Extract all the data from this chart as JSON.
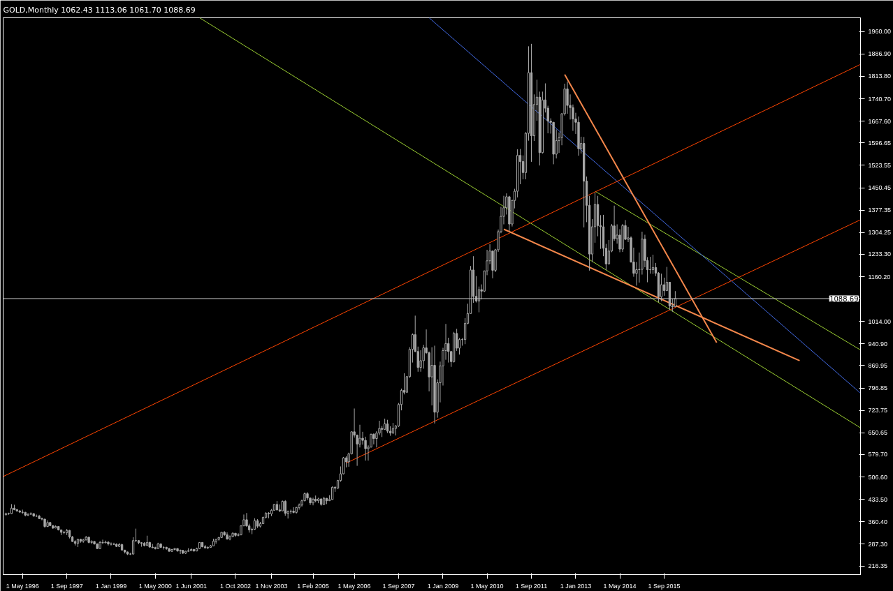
{
  "chart_data": {
    "type": "candlestick",
    "title": "GOLD,Monthly  1062.43 1113.06 1061.70 1088.69",
    "color": "#a8a8a8",
    "x": [
      "1995-11",
      "1995-12",
      "1996-01",
      "1996-02",
      "1996-03",
      "1996-04",
      "1996-05",
      "1996-06",
      "1996-07",
      "1996-08",
      "1996-09",
      "1996-10",
      "1996-11",
      "1996-12",
      "1997-01",
      "1997-02",
      "1997-03",
      "1997-04",
      "1997-05",
      "1997-06",
      "1997-07",
      "1997-08",
      "1997-09",
      "1997-10",
      "1997-11",
      "1997-12",
      "1998-01",
      "1998-02",
      "1998-03",
      "1998-04",
      "1998-05",
      "1998-06",
      "1998-07",
      "1998-08",
      "1998-09",
      "1998-10",
      "1998-11",
      "1998-12",
      "1999-01",
      "1999-02",
      "1999-03",
      "1999-04",
      "1999-05",
      "1999-06",
      "1999-07",
      "1999-08",
      "1999-09",
      "1999-10",
      "1999-11",
      "1999-12",
      "2000-01",
      "2000-02",
      "2000-03",
      "2000-04",
      "2000-05",
      "2000-06",
      "2000-07",
      "2000-08",
      "2000-09",
      "2000-10",
      "2000-11",
      "2000-12",
      "2001-01",
      "2001-02",
      "2001-03",
      "2001-04",
      "2001-05",
      "2001-06",
      "2001-07",
      "2001-08",
      "2001-09",
      "2001-10",
      "2001-11",
      "2001-12",
      "2002-01",
      "2002-02",
      "2002-03",
      "2002-04",
      "2002-05",
      "2002-06",
      "2002-07",
      "2002-08",
      "2002-09",
      "2002-10",
      "2002-11",
      "2002-12",
      "2003-01",
      "2003-02",
      "2003-03",
      "2003-04",
      "2003-05",
      "2003-06",
      "2003-07",
      "2003-08",
      "2003-09",
      "2003-10",
      "2003-11",
      "2003-12",
      "2004-01",
      "2004-02",
      "2004-03",
      "2004-04",
      "2004-05",
      "2004-06",
      "2004-07",
      "2004-08",
      "2004-09",
      "2004-10",
      "2004-11",
      "2004-12",
      "2005-01",
      "2005-02",
      "2005-03",
      "2005-04",
      "2005-05",
      "2005-06",
      "2005-07",
      "2005-08",
      "2005-09",
      "2005-10",
      "2005-11",
      "2005-12",
      "2006-01",
      "2006-02",
      "2006-03",
      "2006-04",
      "2006-05",
      "2006-06",
      "2006-07",
      "2006-08",
      "2006-09",
      "2006-10",
      "2006-11",
      "2006-12",
      "2007-01",
      "2007-02",
      "2007-03",
      "2007-04",
      "2007-05",
      "2007-06",
      "2007-07",
      "2007-08",
      "2007-09",
      "2007-10",
      "2007-11",
      "2007-12",
      "2008-01",
      "2008-02",
      "2008-03",
      "2008-04",
      "2008-05",
      "2008-06",
      "2008-07",
      "2008-08",
      "2008-09",
      "2008-10",
      "2008-11",
      "2008-12",
      "2009-01",
      "2009-02",
      "2009-03",
      "2009-04",
      "2009-05",
      "2009-06",
      "2009-07",
      "2009-08",
      "2009-09",
      "2009-10",
      "2009-11",
      "2009-12",
      "2010-01",
      "2010-02",
      "2010-03",
      "2010-04",
      "2010-05",
      "2010-06",
      "2010-07",
      "2010-08",
      "2010-09",
      "2010-10",
      "2010-11",
      "2010-12",
      "2011-01",
      "2011-02",
      "2011-03",
      "2011-04",
      "2011-05",
      "2011-06",
      "2011-07",
      "2011-08",
      "2011-09",
      "2011-10",
      "2011-11",
      "2011-12",
      "2012-01",
      "2012-02",
      "2012-03",
      "2012-04",
      "2012-05",
      "2012-06",
      "2012-07",
      "2012-08",
      "2012-09",
      "2012-10",
      "2012-11",
      "2012-12",
      "2013-01",
      "2013-02",
      "2013-03",
      "2013-04",
      "2013-05",
      "2013-06",
      "2013-07",
      "2013-08",
      "2013-09",
      "2013-10",
      "2013-11",
      "2013-12",
      "2014-01",
      "2014-02",
      "2014-03",
      "2014-04",
      "2014-05",
      "2014-06",
      "2014-07",
      "2014-08",
      "2014-09",
      "2014-10",
      "2014-11",
      "2014-12",
      "2015-01",
      "2015-02",
      "2015-03",
      "2015-04",
      "2015-05",
      "2015-06",
      "2015-07",
      "2015-08",
      "2015-09",
      "2015-10",
      "2015-11",
      "2015-12",
      "2016-01"
    ],
    "ohlc": [
      [
        383,
        390,
        382,
        387
      ],
      [
        387,
        390,
        383,
        387
      ],
      [
        387,
        418,
        385,
        405
      ],
      [
        405,
        416,
        398,
        400
      ],
      [
        400,
        402,
        393,
        396
      ],
      [
        396,
        398,
        389,
        392
      ],
      [
        392,
        400,
        386,
        391
      ],
      [
        391,
        393,
        378,
        382
      ],
      [
        382,
        388,
        379,
        385
      ],
      [
        385,
        391,
        383,
        387
      ],
      [
        387,
        388,
        377,
        379
      ],
      [
        379,
        384,
        376,
        379
      ],
      [
        379,
        383,
        369,
        371
      ],
      [
        371,
        374,
        365,
        369
      ],
      [
        369,
        370,
        341,
        345
      ],
      [
        345,
        365,
        343,
        358
      ],
      [
        358,
        359,
        346,
        348
      ],
      [
        348,
        349,
        337,
        340
      ],
      [
        340,
        349,
        339,
        345
      ],
      [
        345,
        346,
        332,
        334
      ],
      [
        334,
        335,
        317,
        326
      ],
      [
        326,
        331,
        320,
        325
      ],
      [
        325,
        337,
        317,
        332
      ],
      [
        332,
        334,
        306,
        311
      ],
      [
        311,
        314,
        295,
        296
      ],
      [
        296,
        300,
        283,
        290
      ],
      [
        290,
        305,
        278,
        303
      ],
      [
        303,
        305,
        292,
        297
      ],
      [
        297,
        305,
        292,
        301
      ],
      [
        301,
        314,
        300,
        310
      ],
      [
        310,
        312,
        290,
        293
      ],
      [
        293,
        300,
        288,
        296
      ],
      [
        296,
        298,
        286,
        288
      ],
      [
        288,
        290,
        272,
        273
      ],
      [
        273,
        298,
        272,
        293
      ],
      [
        293,
        302,
        288,
        292
      ],
      [
        292,
        299,
        290,
        294
      ],
      [
        294,
        297,
        283,
        288
      ],
      [
        288,
        293,
        283,
        287
      ],
      [
        287,
        292,
        285,
        287
      ],
      [
        287,
        290,
        278,
        280
      ],
      [
        280,
        291,
        278,
        286
      ],
      [
        286,
        289,
        267,
        268
      ],
      [
        268,
        269,
        257,
        262
      ],
      [
        262,
        263,
        252,
        255
      ],
      [
        255,
        259,
        252,
        255
      ],
      [
        255,
        310,
        254,
        299
      ],
      [
        299,
        338,
        294,
        299
      ],
      [
        299,
        300,
        287,
        292
      ],
      [
        292,
        294,
        279,
        290
      ],
      [
        290,
        294,
        280,
        283
      ],
      [
        283,
        315,
        282,
        293
      ],
      [
        293,
        295,
        276,
        278
      ],
      [
        278,
        288,
        274,
        276
      ],
      [
        276,
        279,
        270,
        273
      ],
      [
        273,
        292,
        272,
        288
      ],
      [
        288,
        290,
        275,
        277
      ],
      [
        277,
        281,
        270,
        277
      ],
      [
        277,
        279,
        269,
        273
      ],
      [
        273,
        275,
        263,
        264
      ],
      [
        264,
        272,
        262,
        270
      ],
      [
        270,
        275,
        267,
        273
      ],
      [
        273,
        274,
        263,
        265
      ],
      [
        265,
        270,
        255,
        267
      ],
      [
        267,
        268,
        255,
        258
      ],
      [
        258,
        266,
        255,
        264
      ],
      [
        264,
        274,
        263,
        266
      ],
      [
        266,
        274,
        265,
        270
      ],
      [
        270,
        272,
        263,
        265
      ],
      [
        265,
        276,
        264,
        273
      ],
      [
        273,
        294,
        271,
        293
      ],
      [
        293,
        294,
        277,
        279
      ],
      [
        279,
        285,
        274,
        275
      ],
      [
        275,
        280,
        271,
        277
      ],
      [
        277,
        285,
        276,
        282
      ],
      [
        282,
        305,
        281,
        297
      ],
      [
        297,
        304,
        289,
        303
      ],
      [
        303,
        311,
        299,
        309
      ],
      [
        309,
        328,
        308,
        326
      ],
      [
        326,
        330,
        314,
        318
      ],
      [
        318,
        326,
        302,
        304
      ],
      [
        304,
        316,
        300,
        312
      ],
      [
        312,
        326,
        310,
        323
      ],
      [
        323,
        323,
        311,
        316
      ],
      [
        316,
        323,
        313,
        318
      ],
      [
        318,
        349,
        316,
        347
      ],
      [
        347,
        384,
        346,
        367
      ],
      [
        367,
        389,
        344,
        347
      ],
      [
        347,
        354,
        325,
        334
      ],
      [
        334,
        341,
        320,
        336
      ],
      [
        336,
        372,
        334,
        364
      ],
      [
        364,
        369,
        340,
        346
      ],
      [
        346,
        360,
        342,
        354
      ],
      [
        354,
        377,
        353,
        375
      ],
      [
        375,
        392,
        371,
        388
      ],
      [
        388,
        392,
        372,
        386
      ],
      [
        386,
        402,
        379,
        398
      ],
      [
        398,
        418,
        397,
        417
      ],
      [
        417,
        428,
        398,
        399
      ],
      [
        399,
        417,
        392,
        396
      ],
      [
        396,
        430,
        396,
        427
      ],
      [
        427,
        431,
        380,
        388
      ],
      [
        388,
        397,
        371,
        394
      ],
      [
        394,
        400,
        386,
        395
      ],
      [
        395,
        408,
        388,
        391
      ],
      [
        391,
        409,
        387,
        407
      ],
      [
        407,
        420,
        400,
        415
      ],
      [
        415,
        433,
        410,
        429
      ],
      [
        429,
        456,
        427,
        452
      ],
      [
        452,
        457,
        431,
        438
      ],
      [
        438,
        439,
        415,
        422
      ],
      [
        422,
        439,
        414,
        434
      ],
      [
        434,
        446,
        424,
        429
      ],
      [
        429,
        439,
        421,
        435
      ],
      [
        435,
        436,
        413,
        417
      ],
      [
        417,
        442,
        415,
        437
      ],
      [
        437,
        438,
        418,
        429
      ],
      [
        429,
        447,
        428,
        433
      ],
      [
        433,
        476,
        432,
        473
      ],
      [
        473,
        476,
        458,
        470
      ],
      [
        470,
        497,
        468,
        495
      ],
      [
        495,
        541,
        491,
        517
      ],
      [
        517,
        572,
        515,
        569
      ],
      [
        569,
        574,
        538,
        556
      ],
      [
        556,
        586,
        540,
        582
      ],
      [
        582,
        655,
        580,
        654
      ],
      [
        654,
        730,
        635,
        643
      ],
      [
        643,
        645,
        543,
        614
      ],
      [
        614,
        677,
        603,
        633
      ],
      [
        633,
        654,
        612,
        626
      ],
      [
        626,
        638,
        560,
        599
      ],
      [
        599,
        610,
        560,
        604
      ],
      [
        604,
        648,
        603,
        646
      ],
      [
        646,
        649,
        613,
        632
      ],
      [
        632,
        656,
        603,
        650
      ],
      [
        650,
        690,
        643,
        665
      ],
      [
        665,
        673,
        637,
        662
      ],
      [
        662,
        697,
        660,
        680
      ],
      [
        680,
        693,
        650,
        656
      ],
      [
        656,
        672,
        641,
        650
      ],
      [
        650,
        683,
        647,
        665
      ],
      [
        665,
        676,
        642,
        673
      ],
      [
        673,
        748,
        670,
        743
      ],
      [
        743,
        795,
        724,
        789
      ],
      [
        789,
        845,
        776,
        783
      ],
      [
        783,
        836,
        782,
        834
      ],
      [
        834,
        930,
        830,
        923
      ],
      [
        923,
        975,
        880,
        971
      ],
      [
        971,
        1033,
        914,
        916
      ],
      [
        916,
        932,
        850,
        864
      ],
      [
        864,
        920,
        850,
        886
      ],
      [
        886,
        938,
        860,
        928
      ],
      [
        928,
        988,
        908,
        912
      ],
      [
        912,
        916,
        786,
        833
      ],
      [
        833,
        930,
        740,
        871
      ],
      [
        871,
        935,
        681,
        718
      ],
      [
        718,
        825,
        700,
        814
      ],
      [
        814,
        883,
        750,
        869
      ],
      [
        869,
        928,
        805,
        919
      ],
      [
        919,
        1006,
        889,
        942
      ],
      [
        942,
        961,
        880,
        916
      ],
      [
        916,
        916,
        866,
        883
      ],
      [
        883,
        980,
        880,
        975
      ],
      [
        975,
        990,
        918,
        927
      ],
      [
        927,
        960,
        906,
        955
      ],
      [
        955,
        960,
        935,
        955
      ],
      [
        955,
        1025,
        940,
        1008
      ],
      [
        1008,
        1072,
        1005,
        1040
      ],
      [
        1040,
        1195,
        1040,
        1182
      ],
      [
        1182,
        1227,
        1075,
        1096
      ],
      [
        1096,
        1162,
        1076,
        1081
      ],
      [
        1081,
        1128,
        1044,
        1118
      ],
      [
        1118,
        1135,
        1086,
        1113
      ],
      [
        1113,
        1180,
        1110,
        1179
      ],
      [
        1179,
        1248,
        1165,
        1212
      ],
      [
        1212,
        1266,
        1201,
        1244
      ],
      [
        1244,
        1245,
        1155,
        1181
      ],
      [
        1181,
        1251,
        1175,
        1248
      ],
      [
        1248,
        1314,
        1241,
        1307
      ],
      [
        1307,
        1388,
        1302,
        1357
      ],
      [
        1357,
        1424,
        1331,
        1385
      ],
      [
        1385,
        1432,
        1363,
        1421
      ],
      [
        1421,
        1424,
        1308,
        1332
      ],
      [
        1332,
        1411,
        1324,
        1409
      ],
      [
        1409,
        1447,
        1383,
        1439
      ],
      [
        1439,
        1576,
        1419,
        1556
      ],
      [
        1556,
        1577,
        1462,
        1536
      ],
      [
        1536,
        1556,
        1478,
        1500
      ],
      [
        1500,
        1632,
        1478,
        1628
      ],
      [
        1628,
        1912,
        1604,
        1826
      ],
      [
        1826,
        1920,
        1535,
        1620
      ],
      [
        1620,
        1755,
        1603,
        1722
      ],
      [
        1722,
        1803,
        1669,
        1746
      ],
      [
        1746,
        1764,
        1523,
        1565
      ],
      [
        1565,
        1764,
        1562,
        1737
      ],
      [
        1737,
        1791,
        1696,
        1710
      ],
      [
        1710,
        1718,
        1628,
        1668
      ],
      [
        1668,
        1677,
        1627,
        1664
      ],
      [
        1664,
        1665,
        1527,
        1560
      ],
      [
        1560,
        1641,
        1546,
        1604
      ],
      [
        1604,
        1631,
        1564,
        1614
      ],
      [
        1614,
        1693,
        1589,
        1692
      ],
      [
        1692,
        1790,
        1686,
        1773
      ],
      [
        1773,
        1797,
        1692,
        1719
      ],
      [
        1719,
        1755,
        1673,
        1712
      ],
      [
        1712,
        1722,
        1636,
        1675
      ],
      [
        1675,
        1695,
        1626,
        1664
      ],
      [
        1664,
        1683,
        1555,
        1578
      ],
      [
        1578,
        1617,
        1562,
        1595
      ],
      [
        1595,
        1616,
        1321,
        1472
      ],
      [
        1472,
        1487,
        1338,
        1393
      ],
      [
        1393,
        1424,
        1180,
        1234
      ],
      [
        1234,
        1348,
        1208,
        1323
      ],
      [
        1323,
        1434,
        1271,
        1396
      ],
      [
        1396,
        1424,
        1292,
        1327
      ],
      [
        1327,
        1361,
        1251,
        1323
      ],
      [
        1323,
        1362,
        1227,
        1253
      ],
      [
        1253,
        1267,
        1182,
        1202
      ],
      [
        1202,
        1280,
        1200,
        1244
      ],
      [
        1244,
        1332,
        1240,
        1326
      ],
      [
        1326,
        1392,
        1277,
        1284
      ],
      [
        1284,
        1331,
        1268,
        1296
      ],
      [
        1296,
        1315,
        1240,
        1250
      ],
      [
        1250,
        1332,
        1241,
        1327
      ],
      [
        1327,
        1345,
        1280,
        1282
      ],
      [
        1282,
        1323,
        1273,
        1287
      ],
      [
        1287,
        1292,
        1206,
        1208
      ],
      [
        1208,
        1255,
        1160,
        1171
      ],
      [
        1171,
        1208,
        1131,
        1183
      ],
      [
        1183,
        1239,
        1141,
        1184
      ],
      [
        1184,
        1307,
        1167,
        1283
      ],
      [
        1283,
        1297,
        1191,
        1213
      ],
      [
        1213,
        1224,
        1142,
        1183
      ],
      [
        1183,
        1225,
        1170,
        1183
      ],
      [
        1183,
        1232,
        1169,
        1190
      ],
      [
        1190,
        1205,
        1162,
        1172
      ],
      [
        1172,
        1175,
        1077,
        1095
      ],
      [
        1095,
        1170,
        1080,
        1134
      ],
      [
        1134,
        1157,
        1098,
        1115
      ],
      [
        1115,
        1192,
        1113,
        1142
      ],
      [
        1142,
        1143,
        1052,
        1065
      ],
      [
        1065,
        1088,
        1046,
        1062
      ],
      [
        1062.43,
        1113.06,
        1061.7,
        1088.69
      ]
    ],
    "series": [
      {
        "type": "line",
        "color": "#9acd32",
        "x": [
          "2001-09",
          "2021-08"
        ],
        "values": [
          2005,
          667
        ]
      },
      {
        "type": "line",
        "color": "#9acd32",
        "x": [
          "2013-08",
          "2021-08"
        ],
        "values": [
          1439,
          921
        ]
      },
      {
        "type": "line",
        "color": "#4169e1",
        "x": [
          "2008-08",
          "2021-08"
        ],
        "values": [
          2005,
          780
        ]
      },
      {
        "type": "line",
        "color": "#ff4500",
        "x": [
          "1995-10",
          "2021-08"
        ],
        "values": [
          508,
          1853
        ]
      },
      {
        "type": "line",
        "color": "#ff4500",
        "x": [
          "2006-02",
          "2021-08"
        ],
        "values": [
          552,
          1346
        ]
      },
      {
        "type": "line",
        "color": "#f4874b",
        "x": [
          "2012-09",
          "2017-04"
        ],
        "values": [
          1820,
          945
        ]
      },
      {
        "type": "line",
        "color": "#f4874b",
        "x": [
          "2010-11",
          "2019-10"
        ],
        "values": [
          1315,
          886
        ]
      }
    ],
    "ref_lines": [
      {
        "axis": "y",
        "value": 1088.69,
        "label": "1088.69",
        "color": "#c0c0c0"
      }
    ],
    "xlim": [
      "1995-10",
      "2021-08"
    ],
    "ylim": [
      188,
      2005
    ],
    "xticks": [
      {
        "value": "1996-05",
        "label": "1 May 1996"
      },
      {
        "value": "1997-09",
        "label": "1 Sep 1997"
      },
      {
        "value": "1999-01",
        "label": "1 Jan 1999"
      },
      {
        "value": "2000-05",
        "label": "1 May 2000"
      },
      {
        "value": "2001-06",
        "label": "1 Jun 2001"
      },
      {
        "value": "2002-10",
        "label": "1 Oct 2002"
      },
      {
        "value": "2003-11",
        "label": "1 Nov 2003"
      },
      {
        "value": "2005-02",
        "label": "1 Feb 2005"
      },
      {
        "value": "2006-05",
        "label": "1 May 2006"
      },
      {
        "value": "2007-09",
        "label": "1 Sep 2007"
      },
      {
        "value": "2009-01",
        "label": "1 Jan 2009"
      },
      {
        "value": "2010-05",
        "label": "1 May 2010"
      },
      {
        "value": "2011-09",
        "label": "1 Sep 2011"
      },
      {
        "value": "2013-01",
        "label": "1 Jan 2013"
      },
      {
        "value": "2014-05",
        "label": "1 May 2014"
      },
      {
        "value": "2015-09",
        "label": "1 Sep 2015"
      }
    ],
    "yticks": [
      216.35,
      {
        "value": 287.3,
        "label": "287.30"
      },
      {
        "value": 360.4,
        "label": "360.40"
      },
      {
        "value": 433.5,
        "label": "433.50"
      },
      {
        "value": 506.6,
        "label": "506.60"
      },
      {
        "value": 579.7,
        "label": "579.70"
      },
      650.65,
      723.75,
      796.85,
      869.95,
      {
        "value": 940.9,
        "label": "940.90"
      },
      {
        "value": 1014,
        "label": "1014.00"
      },
      {
        "value": 1160.2,
        "label": "1160.20"
      },
      {
        "value": 1233.3,
        "label": "1233.30"
      },
      1304.25,
      1377.35,
      1450.45,
      1523.55,
      1596.65,
      {
        "value": 1667.6,
        "label": "1667.60"
      },
      {
        "value": 1740.7,
        "label": "1740.70"
      },
      {
        "value": 1813.8,
        "label": "1813.80"
      },
      {
        "value": 1886.9,
        "label": "1886.90"
      },
      {
        "value": 1960,
        "label": "1960.00"
      }
    ],
    "grid": false,
    "marker": "none",
    "line_style": "solid"
  }
}
